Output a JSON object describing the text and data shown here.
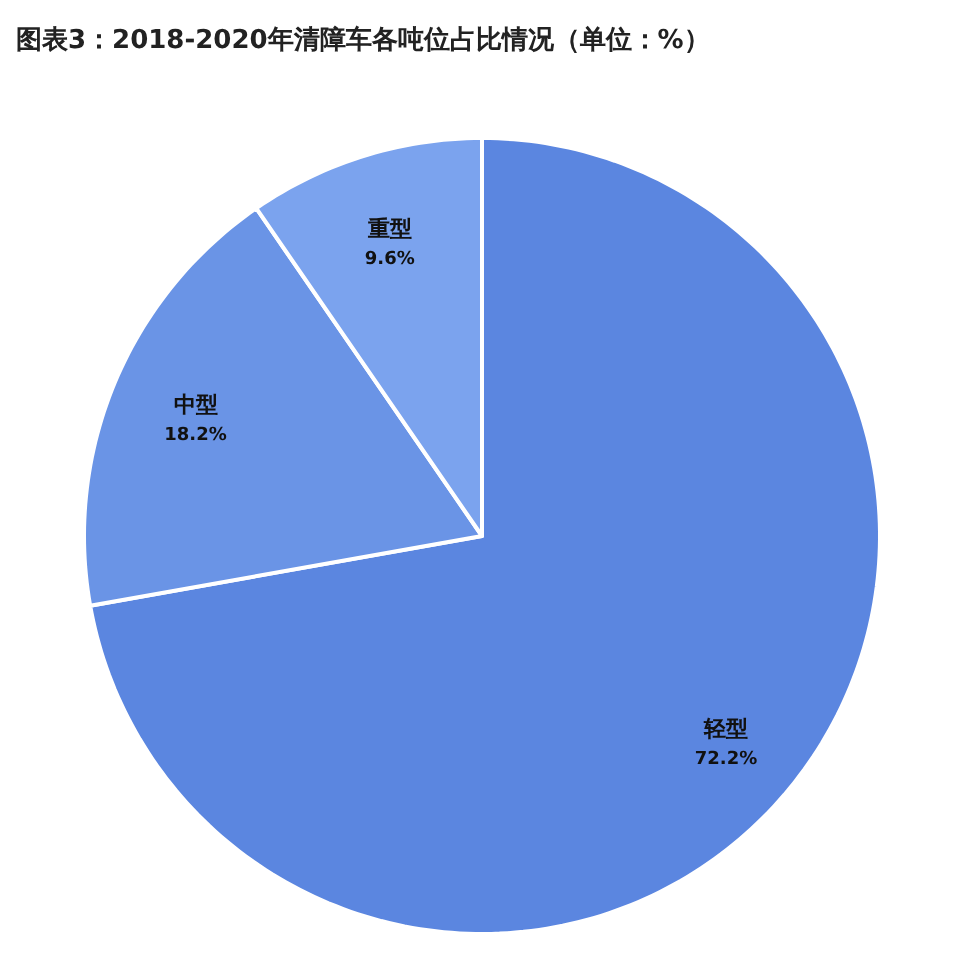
{
  "chart_data": {
    "type": "pie",
    "title": "图表3：2018-2020年清障车各吨位占比情况（单位：%）",
    "categories": [
      "轻型",
      "中型",
      "重型"
    ],
    "values": [
      72.2,
      18.2,
      9.6
    ],
    "value_labels": [
      "72.2%",
      "18.2%",
      "9.6%"
    ],
    "colors": [
      "#5b86e0",
      "#6a94e6",
      "#7ba3ee"
    ]
  }
}
